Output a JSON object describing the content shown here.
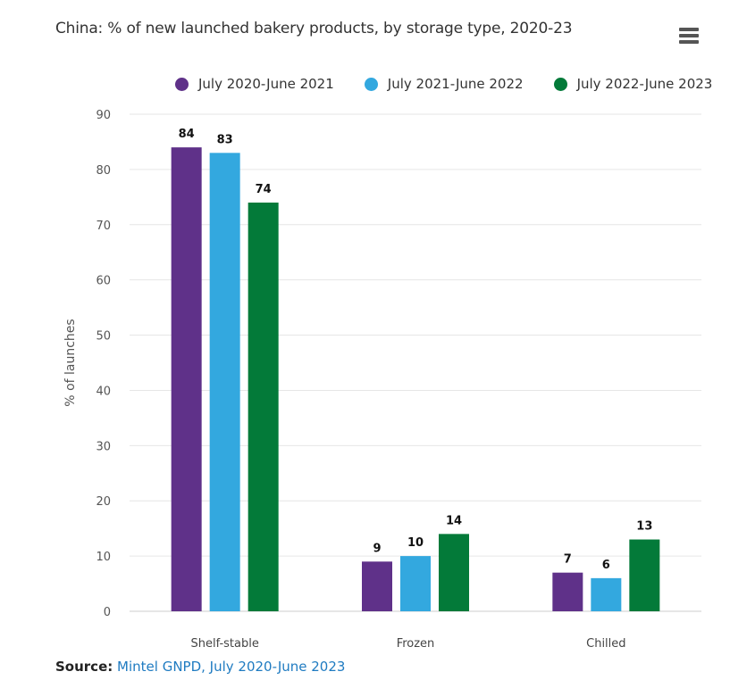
{
  "header": {
    "title": "China: % of new launched bakery products, by storage type, 2020-23",
    "menu_icon": "hamburger-menu-icon"
  },
  "chart_data": {
    "type": "bar",
    "categories": [
      "Shelf-stable",
      "Frozen",
      "Chilled"
    ],
    "series": [
      {
        "name": "July 2020-June 2021",
        "color": "#5f3189",
        "values": [
          84,
          9,
          7
        ]
      },
      {
        "name": "July 2021-June 2022",
        "color": "#33a8df",
        "values": [
          83,
          10,
          6
        ]
      },
      {
        "name": "July 2022-June 2023",
        "color": "#037a39",
        "values": [
          74,
          14,
          13
        ]
      }
    ],
    "title": "China: % of new launched bakery products, by storage type, 2020-23",
    "xlabel": "",
    "ylabel": "% of launches",
    "ylim": [
      0,
      90
    ],
    "yticks": [
      0,
      10,
      20,
      30,
      40,
      50,
      60,
      70,
      80,
      90
    ],
    "grid": true,
    "legend": "top"
  },
  "footer": {
    "source_label": "Source:",
    "source_text": "Mintel GNPD, July 2020-June 2023"
  }
}
